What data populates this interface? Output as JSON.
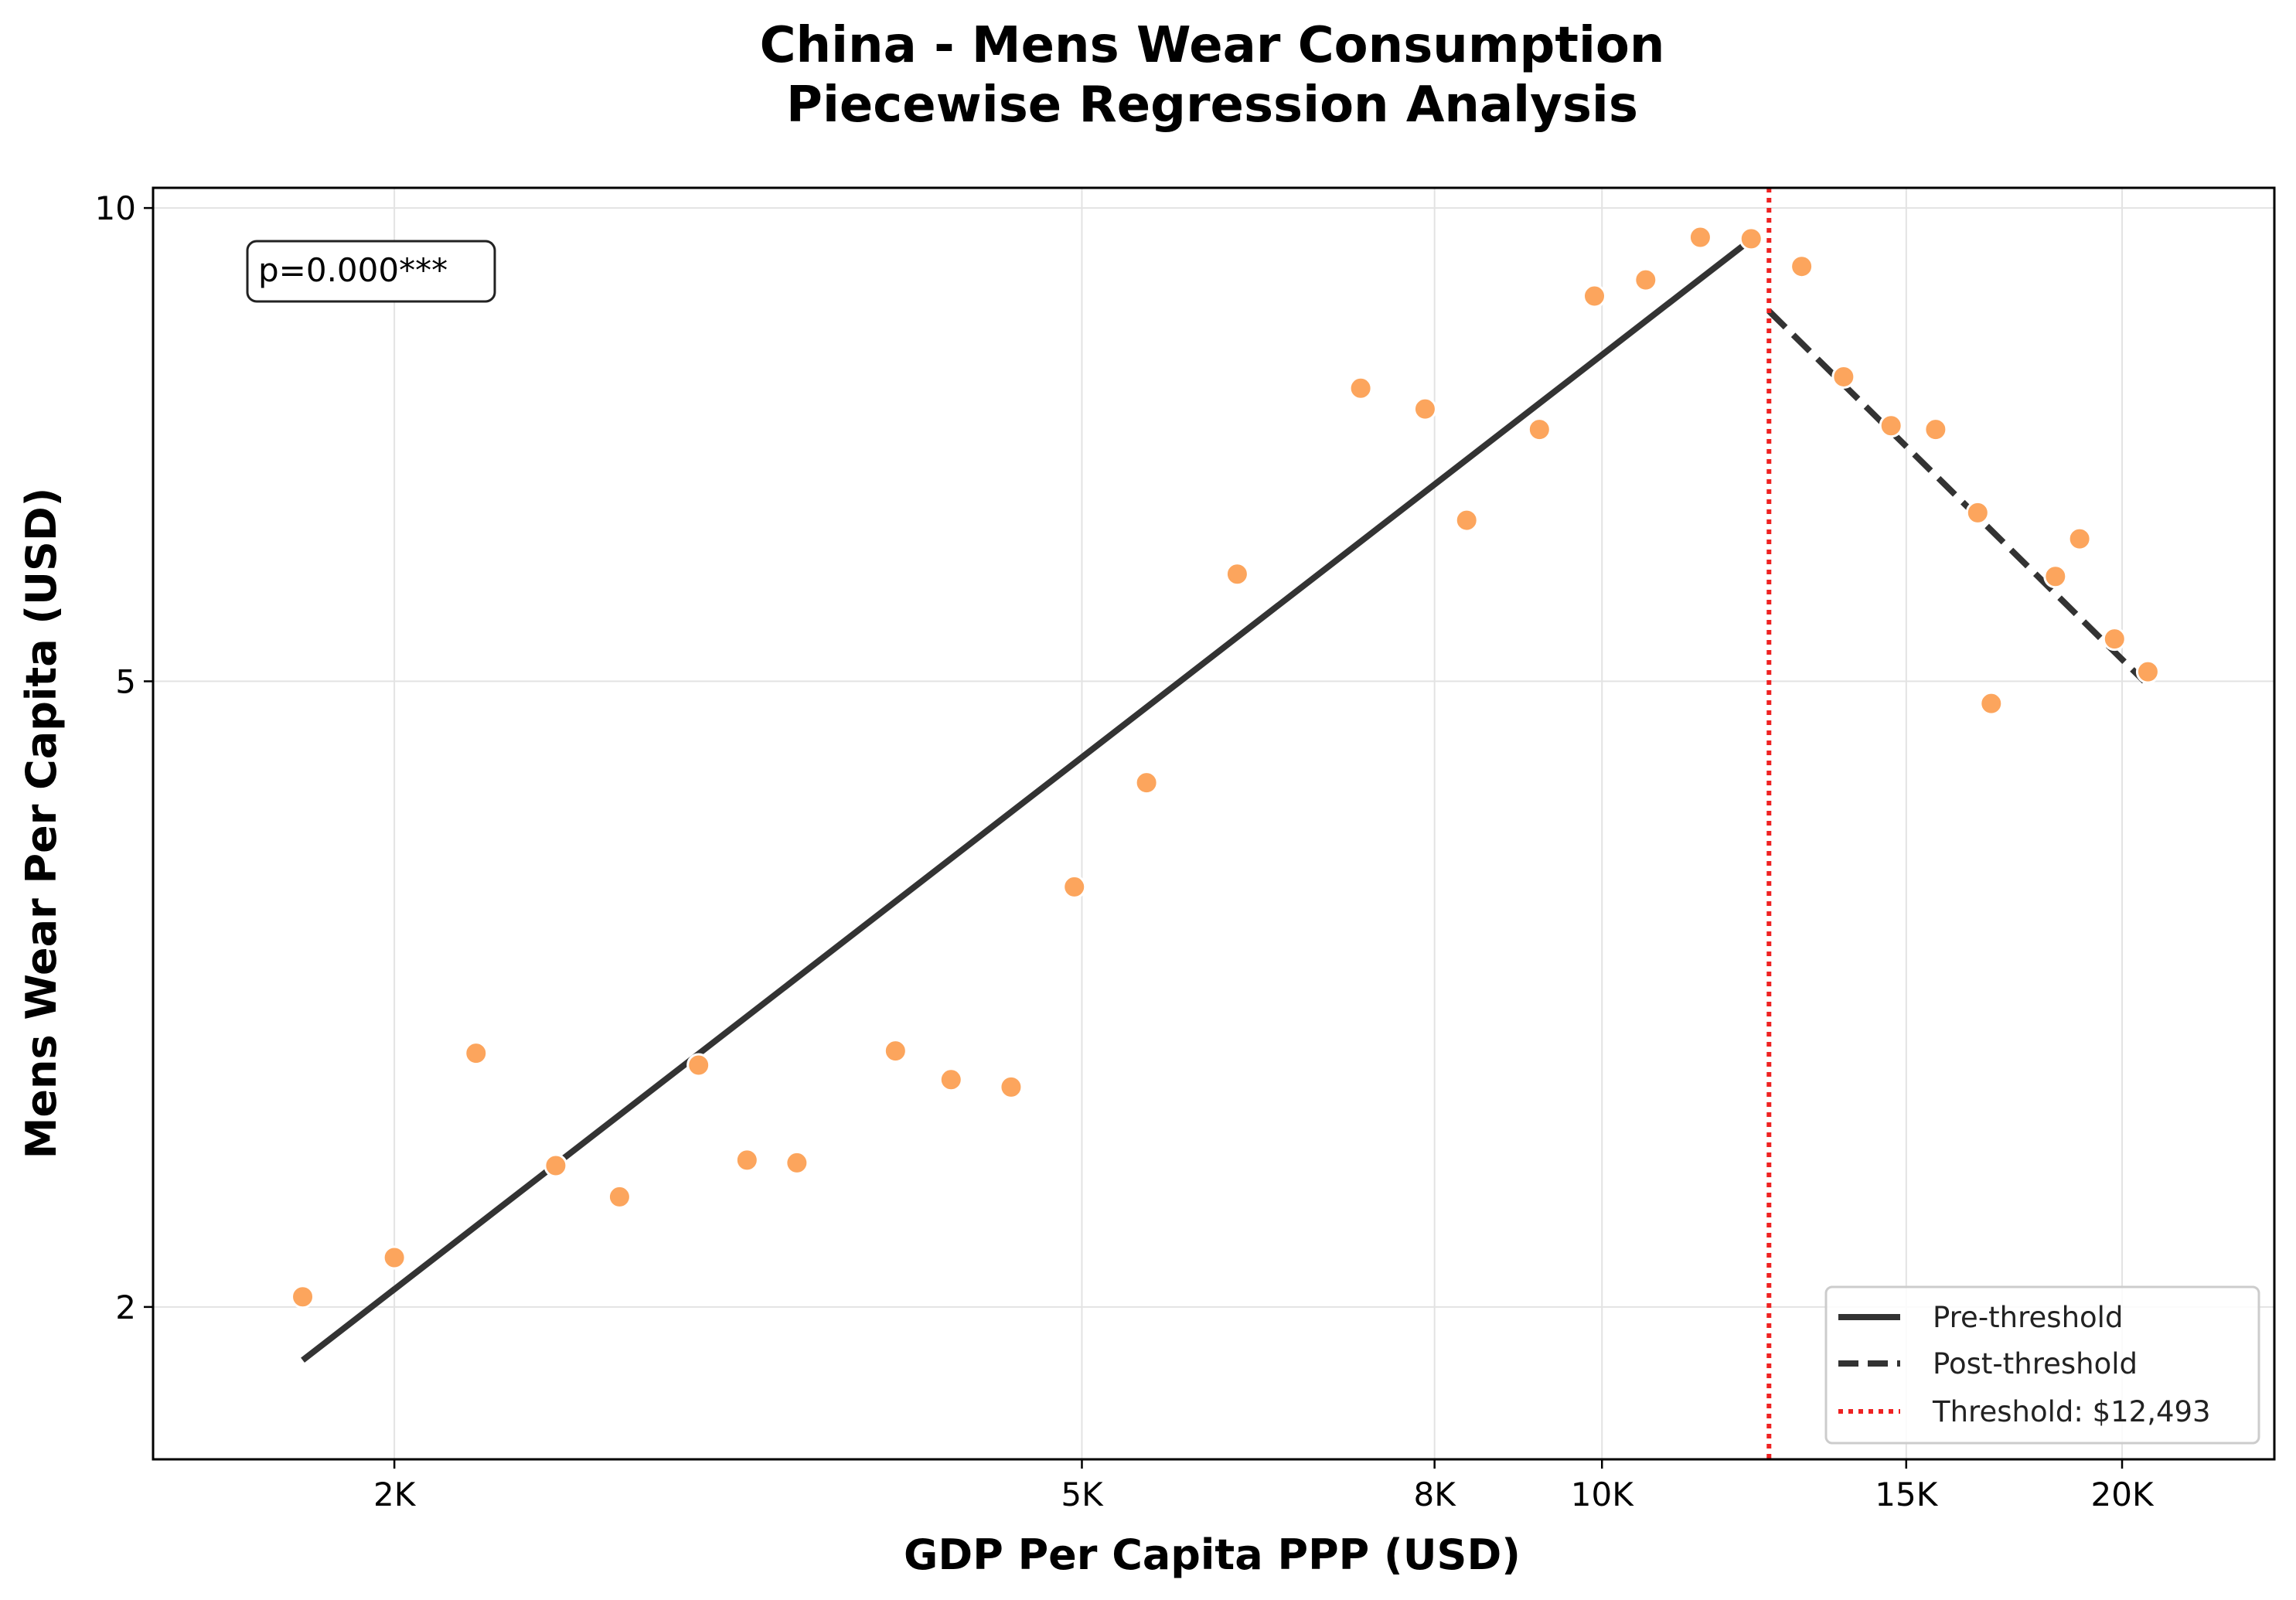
{
  "chart_data": {
    "type": "scatter",
    "title": [
      "China - Mens Wear Consumption",
      "Piecewise Regression Analysis"
    ],
    "xlabel": "GDP Per Capita PPP (USD)",
    "ylabel": "Mens Wear Per Capita (USD)",
    "x_scale": "log",
    "y_scale": "log",
    "xlim": [
      1450,
      24500
    ],
    "ylim": [
      1.6,
      10.3
    ],
    "x_ticks": [
      {
        "value": 2000,
        "label": "2K"
      },
      {
        "value": 5000,
        "label": "5K"
      },
      {
        "value": 8000,
        "label": "8K"
      },
      {
        "value": 10000,
        "label": "10K"
      },
      {
        "value": 15000,
        "label": "15K"
      },
      {
        "value": 20000,
        "label": "20K"
      }
    ],
    "y_ticks": [
      {
        "value": 2,
        "label": "2"
      },
      {
        "value": 5,
        "label": "5"
      },
      {
        "value": 10,
        "label": "10"
      }
    ],
    "grid": true,
    "legend_position": "bottom-right",
    "annotation": "p=0.000***",
    "threshold": {
      "value": 12493,
      "label": "Threshold: $12,493",
      "color": "#ee2222"
    },
    "points": {
      "color": "#fca55d",
      "x": [
        1770,
        2000,
        2230,
        2480,
        2700,
        3000,
        3200,
        3420,
        3900,
        4200,
        4550,
        4550,
        4950,
        5450,
        6150,
        7250,
        7900,
        8350,
        9200,
        9900,
        10600,
        11400,
        12200,
        13050,
        13800,
        14700,
        15600,
        16500,
        16800,
        18300,
        18900,
        19800,
        20700
      ],
      "y": [
        2.03,
        2.15,
        2.9,
        2.46,
        2.35,
        2.85,
        2.48,
        2.47,
        2.91,
        2.79,
        2.76,
        2.76,
        3.7,
        4.31,
        5.85,
        7.68,
        7.45,
        6.33,
        7.23,
        8.79,
        9.0,
        9.58,
        9.56,
        9.18,
        7.81,
        7.27,
        7.23,
        6.4,
        4.84,
        5.83,
        6.16,
        5.32,
        5.07
      ]
    },
    "series": [
      {
        "name": "Pre-threshold",
        "style": "solid",
        "color": "#333333",
        "x": [
          1770,
          12200
        ],
        "y": [
          1.85,
          9.55
        ]
      },
      {
        "name": "Post-threshold",
        "style": "dashed",
        "color": "#333333",
        "x": [
          12493,
          20600
        ],
        "y": [
          8.6,
          5.0
        ]
      }
    ],
    "legend": [
      {
        "label": "Pre-threshold",
        "style": "solid",
        "color": "#333333"
      },
      {
        "label": "Post-threshold",
        "style": "dashed",
        "color": "#333333"
      },
      {
        "label": "Threshold: $12,493",
        "style": "dotted",
        "color": "#ee2222"
      }
    ]
  }
}
